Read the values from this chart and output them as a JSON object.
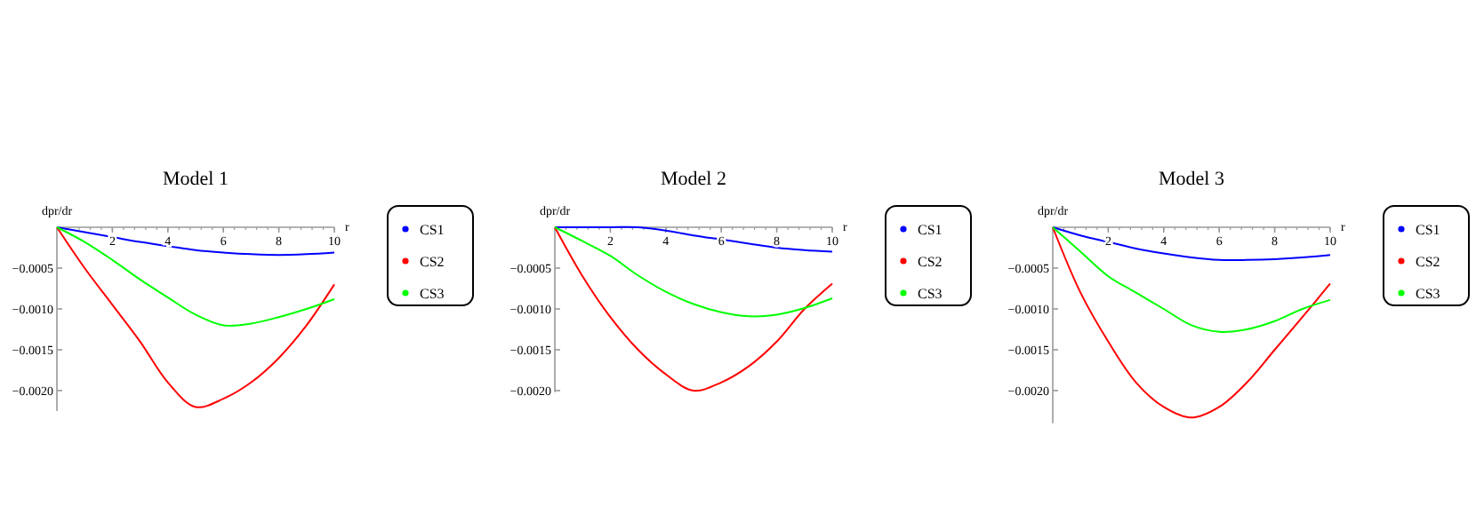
{
  "chart_data": [
    {
      "type": "line",
      "title": "Model 1",
      "xlabel": "r",
      "ylabel": "dpr/dr",
      "x": [
        0,
        1,
        2,
        3,
        4,
        5,
        6,
        7,
        8,
        9,
        10
      ],
      "xlim": [
        0,
        10
      ],
      "xticks": [
        2,
        4,
        6,
        8,
        10
      ],
      "ylim": [
        -0.00225,
        0
      ],
      "yticks": [
        {
          "value": -0.0005,
          "label": "−0.0005"
        },
        {
          "value": -0.001,
          "label": "−0.0010"
        },
        {
          "value": -0.0015,
          "label": "−0.0015"
        },
        {
          "value": -0.002,
          "label": "−0.0020"
        }
      ],
      "legend": "right",
      "grid": false,
      "series": [
        {
          "name": "CS1",
          "color": "#0000ff",
          "values": [
            0,
            -6e-05,
            -0.00012,
            -0.00018,
            -0.00023,
            -0.00028,
            -0.00031,
            -0.00033,
            -0.00034,
            -0.00033,
            -0.00031
          ]
        },
        {
          "name": "CS2",
          "color": "#ff0000",
          "values": [
            0,
            -0.0005,
            -0.00095,
            -0.0014,
            -0.0019,
            -0.0022,
            -0.0021,
            -0.0019,
            -0.0016,
            -0.0012,
            -0.0007
          ]
        },
        {
          "name": "CS3",
          "color": "#00ff00",
          "values": [
            0,
            -0.00018,
            -0.0004,
            -0.00064,
            -0.00086,
            -0.00107,
            -0.0012,
            -0.00118,
            -0.0011,
            -0.001,
            -0.00088
          ]
        }
      ]
    },
    {
      "type": "line",
      "title": "Model 2",
      "xlabel": "r",
      "ylabel": "dpr/dr",
      "x": [
        0,
        1,
        2,
        3,
        4,
        5,
        6,
        7,
        8,
        9,
        10
      ],
      "xlim": [
        0,
        10
      ],
      "xticks": [
        2,
        4,
        6,
        8,
        10
      ],
      "ylim": [
        -0.00202,
        0
      ],
      "yticks": [
        {
          "value": -0.0005,
          "label": "−0.0005"
        },
        {
          "value": -0.001,
          "label": "−0.0010"
        },
        {
          "value": -0.0015,
          "label": "−0.0015"
        },
        {
          "value": -0.002,
          "label": "−0.0020"
        }
      ],
      "legend": "right",
      "grid": false,
      "series": [
        {
          "name": "CS1",
          "color": "#0000ff",
          "values": [
            0,
            0,
            0,
            0,
            -4e-05,
            -0.0001,
            -0.00015,
            -0.0002,
            -0.00025,
            -0.00028,
            -0.0003
          ]
        },
        {
          "name": "CS2",
          "color": "#ff0000",
          "values": [
            0,
            -0.0006,
            -0.0011,
            -0.0015,
            -0.0018,
            -0.002,
            -0.0019,
            -0.0017,
            -0.0014,
            -0.001,
            -0.00069
          ]
        },
        {
          "name": "CS3",
          "color": "#00ff00",
          "values": [
            0,
            -0.00017,
            -0.00035,
            -0.00059,
            -0.00079,
            -0.00094,
            -0.00104,
            -0.00109,
            -0.00107,
            -0.00099,
            -0.00087
          ]
        }
      ]
    },
    {
      "type": "line",
      "title": "Model 3",
      "xlabel": "r",
      "ylabel": "dpr/dr",
      "x": [
        0,
        1,
        2,
        3,
        4,
        5,
        6,
        7,
        8,
        9,
        10
      ],
      "xlim": [
        0,
        10
      ],
      "xticks": [
        2,
        4,
        6,
        8,
        10
      ],
      "ylim": [
        -0.0024,
        0
      ],
      "yticks": [
        {
          "value": -0.0005,
          "label": "−0.0005"
        },
        {
          "value": -0.001,
          "label": "−0.0010"
        },
        {
          "value": -0.0015,
          "label": "−0.0015"
        },
        {
          "value": -0.002,
          "label": "−0.0020"
        }
      ],
      "legend": "right",
      "grid": false,
      "series": [
        {
          "name": "CS1",
          "color": "#0000ff",
          "values": [
            0,
            -0.0001,
            -0.00018,
            -0.00026,
            -0.00032,
            -0.00037,
            -0.0004,
            -0.0004,
            -0.00039,
            -0.00037,
            -0.00034
          ]
        },
        {
          "name": "CS2",
          "color": "#ff0000",
          "values": [
            0,
            -0.0008,
            -0.0014,
            -0.0019,
            -0.0022,
            -0.00233,
            -0.0022,
            -0.0019,
            -0.0015,
            -0.0011,
            -0.00069
          ]
        },
        {
          "name": "CS3",
          "color": "#00ff00",
          "values": [
            0,
            -0.0003,
            -0.0006,
            -0.0008,
            -0.001,
            -0.0012,
            -0.00128,
            -0.00125,
            -0.00115,
            -0.001,
            -0.00089
          ]
        }
      ]
    }
  ]
}
